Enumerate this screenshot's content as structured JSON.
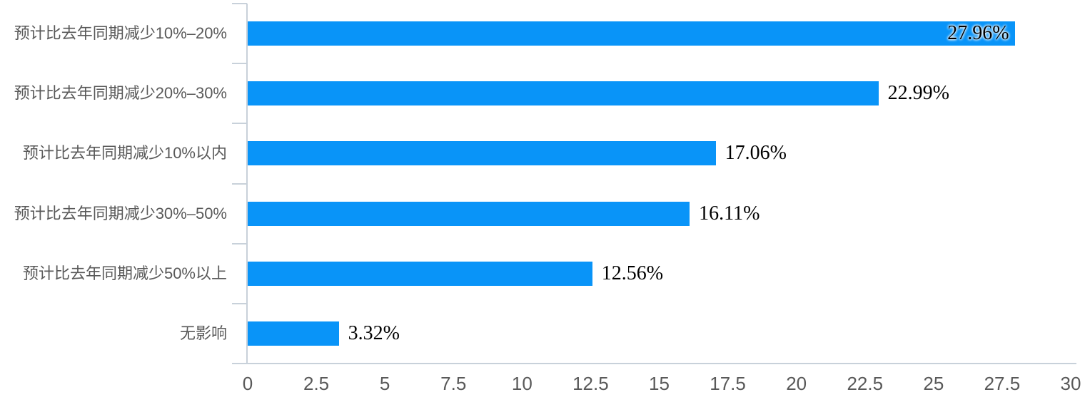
{
  "chart_data": {
    "type": "bar",
    "orientation": "horizontal",
    "title": "",
    "xlabel": "",
    "ylabel": "",
    "categories": [
      "预计比去年同期减少10%–20%",
      "预计比去年同期减少20%–30%",
      "预计比去年同期减少10%以内",
      "预计比去年同期减少30%–50%",
      "预计比去年同期减少50%以上",
      "无影响"
    ],
    "values": [
      27.96,
      22.99,
      17.06,
      16.11,
      12.56,
      3.32
    ],
    "data_labels": [
      "27.96%",
      "22.99%",
      "17.06%",
      "16.11%",
      "12.56%",
      "3.32%"
    ],
    "xlim": [
      0,
      30
    ],
    "x_ticks": [
      0,
      2.5,
      5,
      7.5,
      10,
      12.5,
      15,
      17.5,
      20,
      22.5,
      25,
      27.5,
      30
    ],
    "x_tick_labels": [
      "0",
      "2.5",
      "5",
      "7.5",
      "10",
      "12.5",
      "15",
      "17.5",
      "20",
      "22.5",
      "25",
      "27.5",
      "30"
    ],
    "grid": false,
    "legend": "none",
    "colors": {
      "bar": "#0994f8",
      "axis_line": "#c8d1da",
      "axis_text": "#595959",
      "value_label_text": "#000000",
      "background": "#ffffff"
    }
  }
}
